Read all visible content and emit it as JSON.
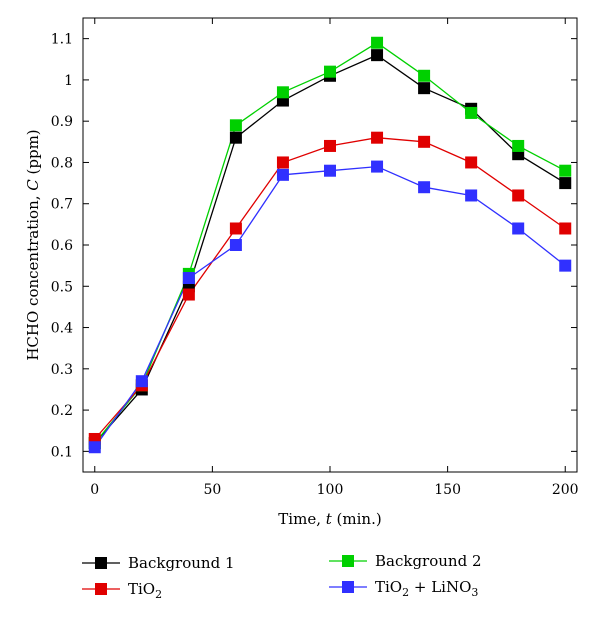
{
  "chart_data": {
    "type": "line",
    "title": "",
    "xlabel_parts": [
      "Time, ",
      "t",
      " (min.)"
    ],
    "ylabel_parts": [
      "HCHO concentration, ",
      "C",
      " (ppm)"
    ],
    "xlim": [
      -5,
      205
    ],
    "ylim": [
      0.05,
      1.15
    ],
    "x_ticks": [
      0,
      50,
      100,
      150,
      200
    ],
    "x_tick_labels": [
      "0",
      "50",
      "100",
      "150",
      "200"
    ],
    "y_ticks": [
      0.1,
      0.2,
      0.3,
      0.4,
      0.5,
      0.6,
      0.7,
      0.8,
      0.9,
      1.0,
      1.1
    ],
    "y_tick_labels": [
      "0.1",
      "0.2",
      "0.3",
      "0.4",
      "0.5",
      "0.6",
      "0.7",
      "0.8",
      "0.9",
      "1",
      "1.1"
    ],
    "grid": false,
    "legend_placement": "bottom",
    "x": [
      0,
      20,
      40,
      60,
      80,
      100,
      120,
      140,
      160,
      180,
      200
    ],
    "series": [
      {
        "name": "Background 1",
        "color": "#000000",
        "values": [
          0.12,
          0.25,
          0.5,
          0.86,
          0.95,
          1.01,
          1.06,
          0.98,
          0.93,
          0.82,
          0.75
        ]
      },
      {
        "name": "Background 2",
        "color": "#00d000",
        "values": [
          0.12,
          0.26,
          0.53,
          0.89,
          0.97,
          1.02,
          1.09,
          1.01,
          0.92,
          0.84,
          0.78
        ]
      },
      {
        "name_parts": [
          "TiO",
          "2",
          ""
        ],
        "color": "#e00000",
        "values": [
          0.13,
          0.26,
          0.48,
          0.64,
          0.8,
          0.84,
          0.86,
          0.85,
          0.8,
          0.72,
          0.64
        ]
      },
      {
        "name_parts": [
          "TiO",
          "2",
          " + LiNO",
          "3",
          ""
        ],
        "color": "#3030ff",
        "values": [
          0.11,
          0.27,
          0.52,
          0.6,
          0.77,
          0.78,
          0.79,
          0.74,
          0.72,
          0.64,
          0.55
        ]
      }
    ]
  }
}
